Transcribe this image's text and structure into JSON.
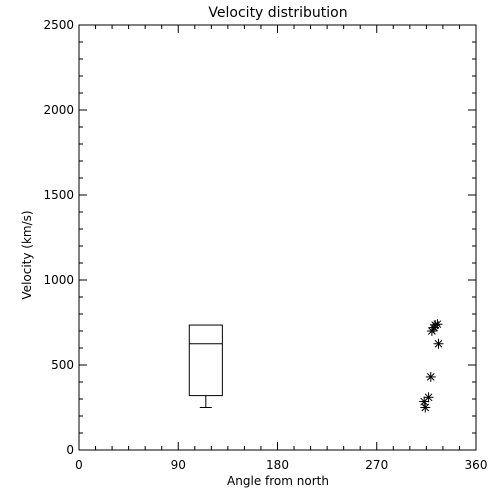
{
  "chart_data": {
    "type": "scatter",
    "title": "Velocity distribution",
    "xlabel": "Angle from north",
    "ylabel": "Velocity (km/s)",
    "xlim": [
      0,
      360
    ],
    "ylim": [
      0,
      2500
    ],
    "xticks": [
      "0",
      "90",
      "180",
      "270",
      "360"
    ],
    "yticks": [
      "0",
      "500",
      "1000",
      "1500",
      "2000",
      "2500"
    ],
    "grid": false,
    "box": {
      "x_range": [
        100,
        130
      ],
      "whisker_low": 250,
      "q1": 320,
      "median": 625,
      "q3": 735
    },
    "points": [
      {
        "x": 313,
        "y": 285
      },
      {
        "x": 314,
        "y": 250
      },
      {
        "x": 317,
        "y": 310
      },
      {
        "x": 319,
        "y": 430
      },
      {
        "x": 320,
        "y": 700
      },
      {
        "x": 322,
        "y": 720
      },
      {
        "x": 323,
        "y": 735
      },
      {
        "x": 325,
        "y": 740
      },
      {
        "x": 326,
        "y": 625
      }
    ]
  }
}
